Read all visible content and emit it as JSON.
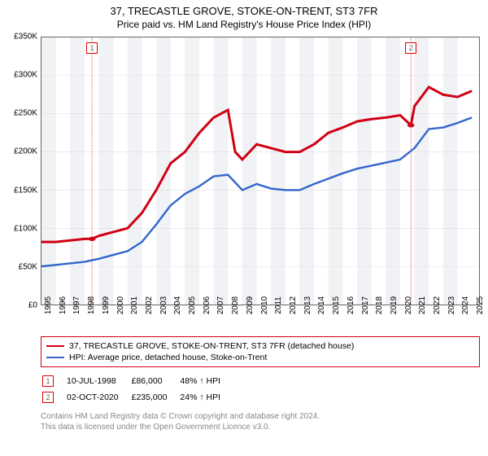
{
  "title": "37, TRECASTLE GROVE, STOKE-ON-TRENT, ST3 7FR",
  "subtitle": "Price paid vs. HM Land Registry's House Price Index (HPI)",
  "chart": {
    "type": "line",
    "ylim": [
      0,
      350000
    ],
    "ytick_step": 50000,
    "y_ticks": [
      "£0",
      "£50K",
      "£100K",
      "£150K",
      "£200K",
      "£250K",
      "£300K",
      "£350K"
    ],
    "x_years": [
      1995,
      1996,
      1997,
      1998,
      1999,
      2000,
      2001,
      2002,
      2003,
      2004,
      2005,
      2006,
      2007,
      2008,
      2009,
      2010,
      2011,
      2012,
      2013,
      2014,
      2015,
      2016,
      2017,
      2018,
      2019,
      2020,
      2021,
      2022,
      2023,
      2024,
      2025
    ],
    "x_range": [
      1995,
      2025.5
    ],
    "bg_bands_color": "#f1f2f6",
    "bg_color": "#ffffff",
    "grid_color": "#cccccc",
    "border_color": "#666666",
    "series": [
      {
        "name": "property",
        "color": "#d00014",
        "width": 1.5,
        "points": [
          [
            1995,
            82
          ],
          [
            1996,
            82
          ],
          [
            1997,
            84
          ],
          [
            1998,
            86
          ],
          [
            1998.5,
            86
          ],
          [
            1999,
            90
          ],
          [
            2000,
            95
          ],
          [
            2001,
            100
          ],
          [
            2002,
            120
          ],
          [
            2003,
            150
          ],
          [
            2004,
            185
          ],
          [
            2005,
            200
          ],
          [
            2006,
            225
          ],
          [
            2007,
            245
          ],
          [
            2008,
            255
          ],
          [
            2008.5,
            200
          ],
          [
            2009,
            190
          ],
          [
            2010,
            210
          ],
          [
            2011,
            205
          ],
          [
            2012,
            200
          ],
          [
            2013,
            200
          ],
          [
            2014,
            210
          ],
          [
            2015,
            225
          ],
          [
            2016,
            232
          ],
          [
            2017,
            240
          ],
          [
            2018,
            243
          ],
          [
            2019,
            245
          ],
          [
            2020,
            248
          ],
          [
            2020.75,
            235
          ],
          [
            2021,
            260
          ],
          [
            2022,
            285
          ],
          [
            2023,
            275
          ],
          [
            2024,
            272
          ],
          [
            2025,
            280
          ]
        ]
      },
      {
        "name": "hpi",
        "color": "#3366cc",
        "width": 1.2,
        "points": [
          [
            1995,
            50
          ],
          [
            1996,
            52
          ],
          [
            1997,
            54
          ],
          [
            1998,
            56
          ],
          [
            1999,
            60
          ],
          [
            2000,
            65
          ],
          [
            2001,
            70
          ],
          [
            2002,
            82
          ],
          [
            2003,
            105
          ],
          [
            2004,
            130
          ],
          [
            2005,
            145
          ],
          [
            2006,
            155
          ],
          [
            2007,
            168
          ],
          [
            2008,
            170
          ],
          [
            2009,
            150
          ],
          [
            2010,
            158
          ],
          [
            2011,
            152
          ],
          [
            2012,
            150
          ],
          [
            2013,
            150
          ],
          [
            2014,
            158
          ],
          [
            2015,
            165
          ],
          [
            2016,
            172
          ],
          [
            2017,
            178
          ],
          [
            2018,
            182
          ],
          [
            2019,
            186
          ],
          [
            2020,
            190
          ],
          [
            2021,
            205
          ],
          [
            2022,
            230
          ],
          [
            2023,
            232
          ],
          [
            2024,
            238
          ],
          [
            2025,
            245
          ]
        ]
      }
    ],
    "sale_markers": [
      {
        "num": "1",
        "year": 1998.52,
        "price": 86000,
        "marker_color": "#d00014"
      },
      {
        "num": "2",
        "year": 2020.75,
        "price": 235000,
        "marker_color": "#d00014"
      }
    ],
    "marker_line_color": "#d00014",
    "marker_line_dash": "3,3"
  },
  "legend": {
    "border_color": "#d00014",
    "rows": [
      {
        "color": "#d00014",
        "label": "37, TRECASTLE GROVE, STOKE-ON-TRENT, ST3 7FR (detached house)"
      },
      {
        "color": "#3366cc",
        "label": "HPI: Average price, detached house, Stoke-on-Trent"
      }
    ]
  },
  "markers_table": [
    {
      "num": "1",
      "date": "10-JUL-1998",
      "price": "£86,000",
      "diff": "48% ↑ HPI"
    },
    {
      "num": "2",
      "date": "02-OCT-2020",
      "price": "£235,000",
      "diff": "24% ↑ HPI"
    }
  ],
  "license_line1": "Contains HM Land Registry data © Crown copyright and database right 2024.",
  "license_line2": "This data is licensed under the Open Government Licence v3.0."
}
